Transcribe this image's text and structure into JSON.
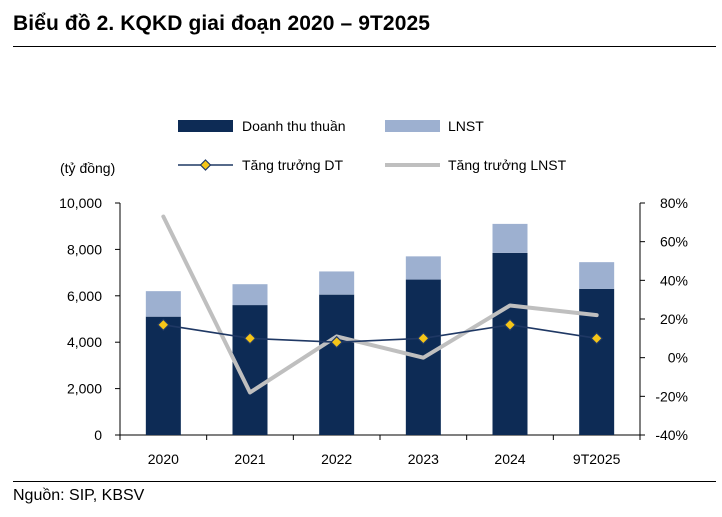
{
  "header": {
    "title": "Biểu đồ 2. KQKD giai đoạn 2020 – 9T2025"
  },
  "footer": {
    "source": "Nguồn: SIP, KBSV"
  },
  "colors": {
    "revenue": "#0d2b55",
    "profit": "#9db0d0",
    "growth_dt": "#1f3864",
    "growth_marker": "#f5c518",
    "growth_lnst": "#bfbfbf"
  },
  "chart_data": {
    "type": "bar",
    "stacked": true,
    "title": "Biểu đồ 2. KQKD giai đoạn 2020 – 9T2025",
    "unit_label": "(tỷ đồng)",
    "categories": [
      "2020",
      "2021",
      "2022",
      "2023",
      "2024",
      "9T2025"
    ],
    "series": [
      {
        "name": "Doanh thu thuần",
        "kind": "bar",
        "axis": "left",
        "values": [
          5100,
          5600,
          6050,
          6700,
          7850,
          6300
        ]
      },
      {
        "name": "LNST",
        "kind": "bar",
        "axis": "left",
        "values": [
          1100,
          900,
          1000,
          1000,
          1250,
          1150
        ]
      },
      {
        "name": "Tăng trưởng DT",
        "kind": "line",
        "axis": "right",
        "marker": "diamond",
        "values": [
          17,
          10,
          8,
          10,
          17,
          10
        ]
      },
      {
        "name": "Tăng trưởng LNST",
        "kind": "line",
        "axis": "right",
        "values": [
          73,
          -18,
          11,
          0,
          27,
          22
        ]
      }
    ],
    "y_left": {
      "min": 0,
      "max": 10000,
      "ticks": [
        0,
        2000,
        4000,
        6000,
        8000,
        10000
      ],
      "tick_labels": [
        "0",
        "2,000",
        "4,000",
        "6,000",
        "8,000",
        "10,000"
      ]
    },
    "y_right": {
      "min": -40,
      "max": 80,
      "ticks": [
        -40,
        -20,
        0,
        20,
        40,
        60,
        80
      ],
      "tick_labels": [
        "-40%",
        "-20%",
        "0%",
        "20%",
        "40%",
        "60%",
        "80%"
      ]
    },
    "legend": [
      "Doanh thu thuần",
      "LNST",
      "Tăng trưởng DT",
      "Tăng trưởng LNST"
    ],
    "legend_position": "top",
    "grid": false
  }
}
